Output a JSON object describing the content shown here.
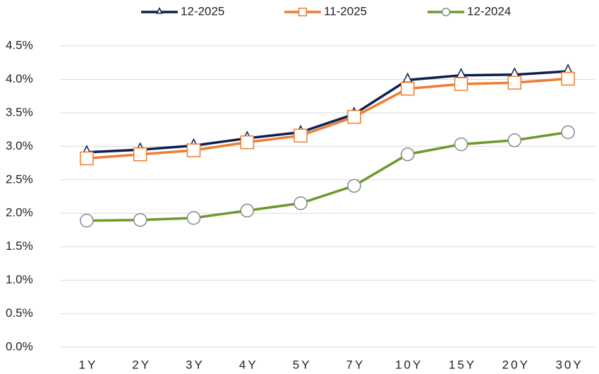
{
  "chart_data": {
    "type": "line",
    "categories": [
      "1Y",
      "2Y",
      "3Y",
      "4Y",
      "5Y",
      "7Y",
      "10Y",
      "15Y",
      "20Y",
      "30Y"
    ],
    "series": [
      {
        "name": "12-2025",
        "color": "#0d1f4d",
        "marker": "triangle",
        "values": [
          2.91,
          2.95,
          3.01,
          3.12,
          3.21,
          3.48,
          3.99,
          4.06,
          4.07,
          4.12
        ]
      },
      {
        "name": "11-2025",
        "color": "#ef7d31",
        "marker": "square",
        "values": [
          2.82,
          2.88,
          2.94,
          3.06,
          3.16,
          3.44,
          3.86,
          3.93,
          3.95,
          4.01
        ]
      },
      {
        "name": "12-2024",
        "color": "#6a9a2a",
        "marker": "circle",
        "values": [
          1.89,
          1.9,
          1.93,
          2.04,
          2.15,
          2.41,
          2.88,
          3.03,
          3.09,
          3.21
        ]
      }
    ],
    "ylim": [
      0,
      4.5
    ],
    "yticks": [
      {
        "value": 0,
        "label": "0.0%"
      },
      {
        "value": 0.5,
        "label": "0.5%"
      },
      {
        "value": 1,
        "label": "1.0%"
      },
      {
        "value": 1.5,
        "label": "1.5%"
      },
      {
        "value": 2,
        "label": "2.0%"
      },
      {
        "value": 2.5,
        "label": "2.5%"
      },
      {
        "value": 3,
        "label": "3.0%"
      },
      {
        "value": 3.5,
        "label": "3.5%"
      },
      {
        "value": 4,
        "label": "4.0%"
      },
      {
        "value": 4.5,
        "label": "4.5%"
      }
    ],
    "grid": true,
    "legend": "top"
  }
}
